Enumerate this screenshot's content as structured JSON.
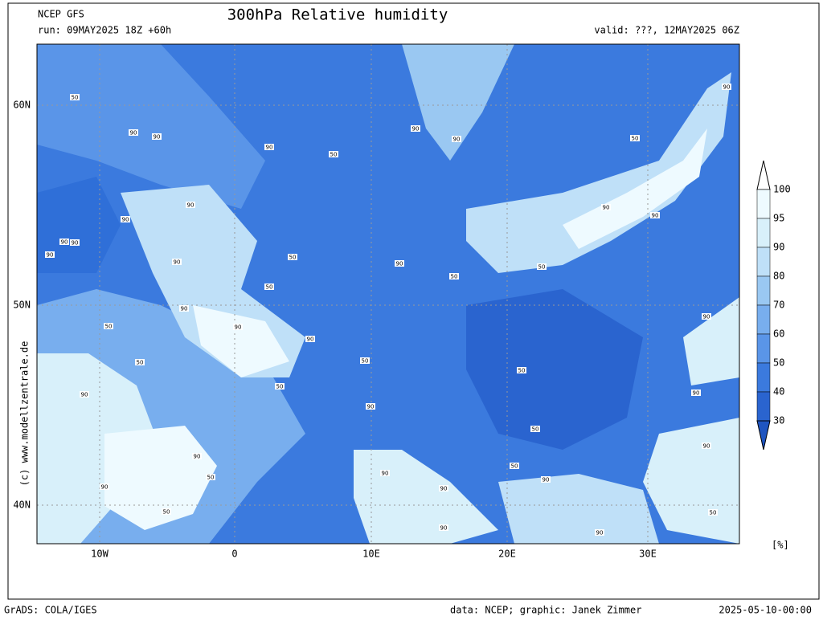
{
  "header": {
    "model": "NCEP GFS",
    "title": "300hPa Relative humidity",
    "run": "run: 09MAY2025 18Z +60h",
    "valid": "valid: ???, 12MAY2025 06Z"
  },
  "map": {
    "lat_labels": [
      "60N",
      "50N",
      "40N"
    ],
    "lon_labels": [
      "10W",
      "0",
      "10E",
      "20E",
      "30E"
    ],
    "contour_labels": [
      50,
      90,
      90,
      90,
      50,
      90,
      90,
      50,
      90,
      90,
      90,
      90,
      90,
      90,
      90,
      50,
      90,
      50,
      50,
      90,
      90,
      50,
      90,
      50,
      90,
      90,
      50,
      50,
      90,
      50,
      50,
      90,
      90,
      90,
      50,
      90,
      90,
      50,
      50,
      90,
      90,
      90,
      90,
      50,
      50,
      90,
      90
    ]
  },
  "colorbar": {
    "labels": [
      100,
      95,
      90,
      80,
      70,
      60,
      50,
      40,
      30
    ],
    "unit": "[%]"
  },
  "credit": "(c) www.modellzentrale.de",
  "footer": {
    "left": "GrADS: COLA/IGES",
    "center": "data: NCEP; graphic: Janek Zimmer",
    "right": "2025-05-10-00:00"
  }
}
